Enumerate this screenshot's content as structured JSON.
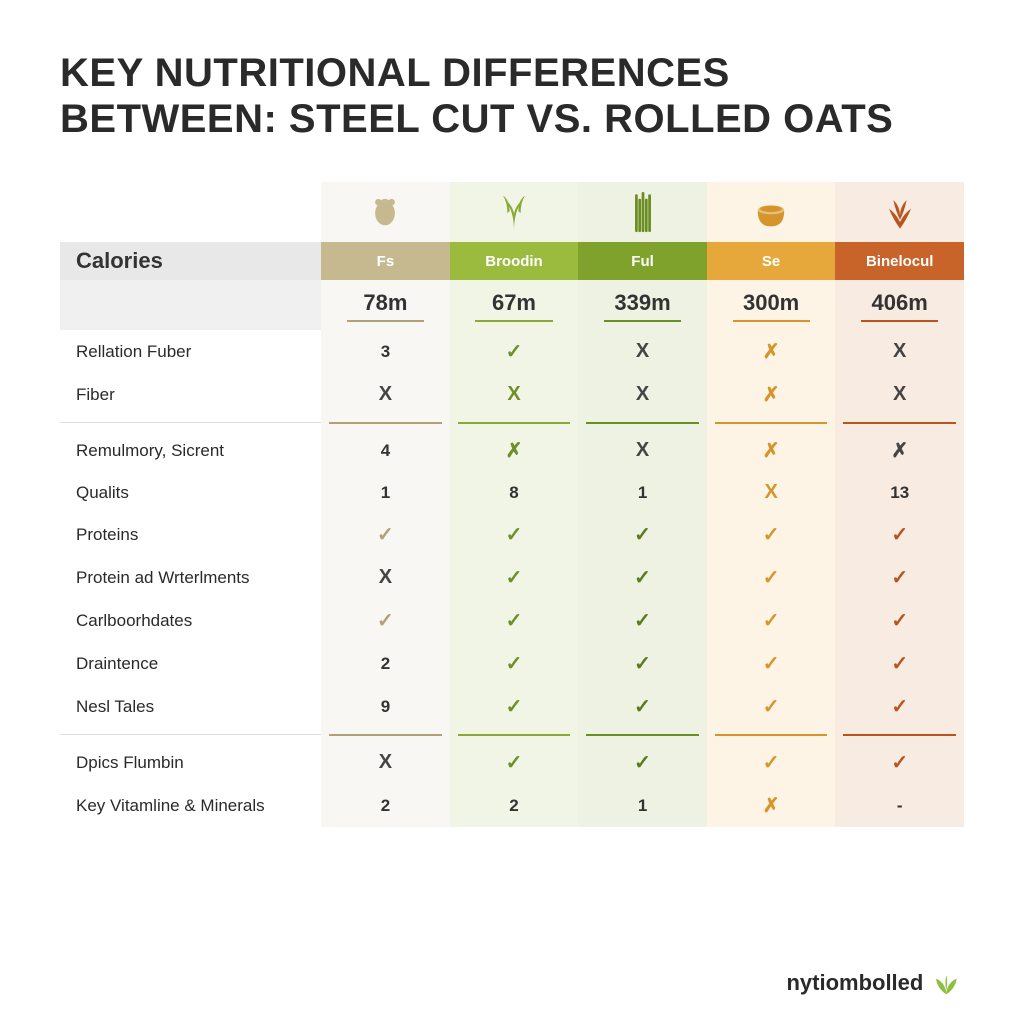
{
  "title_line1": "Key Nutritional Differences",
  "title_line2": "Between: Steel Cut vs. Rolled Oats",
  "calories_label": "Calories",
  "columns": [
    {
      "label": "Fs",
      "value": "78m",
      "header_bg": "#c7b98f",
      "accent": "#b0a275",
      "tint": "c1",
      "check_color": "#b0a275",
      "cross_color": "#444444"
    },
    {
      "label": "Broodin",
      "value": "67m",
      "header_bg": "#9bbb3f",
      "accent": "#8aa936",
      "tint": "c2",
      "check_color": "#6f8f2a",
      "cross_color": "#6f8f2a"
    },
    {
      "label": "Ful",
      "value": "339m",
      "header_bg": "#7fa22c",
      "accent": "#6b8e23",
      "tint": "c3",
      "check_color": "#5a7a1e",
      "cross_color": "#444444"
    },
    {
      "label": "Se",
      "value": "300m",
      "header_bg": "#e6a83b",
      "accent": "#d6952c",
      "tint": "c4",
      "check_color": "#d6952c",
      "cross_color": "#d6952c"
    },
    {
      "label": "Binelocul",
      "value": "406m",
      "header_bg": "#c8632a",
      "accent": "#b8551f",
      "tint": "c5",
      "check_color": "#b8551f",
      "cross_color": "#444444"
    }
  ],
  "rows": [
    {
      "label": "Rellation Fuber",
      "cells": [
        "3",
        "✓",
        "X",
        "✗",
        "X"
      ]
    },
    {
      "label": "Fiber",
      "cells": [
        "X",
        "X",
        "X",
        "✗",
        "X"
      ]
    },
    {
      "sep": true
    },
    {
      "label": "Remulmory, Sicrent",
      "cells": [
        "4",
        "✗",
        "X",
        "✗",
        "✗"
      ]
    },
    {
      "label": "Qualits",
      "cells": [
        "1",
        "8",
        "1",
        "X",
        "13"
      ]
    },
    {
      "label": "Proteins",
      "cells": [
        "✓",
        "✓",
        "✓",
        "✓",
        "✓"
      ]
    },
    {
      "label": "Protein ad Wrterlments",
      "cells": [
        "X",
        "✓",
        "✓",
        "✓",
        "✓"
      ]
    },
    {
      "label": "Carlboorhdates",
      "cells": [
        "✓",
        "✓",
        "✓",
        "✓",
        "✓"
      ]
    },
    {
      "label": "Draintence",
      "cells": [
        "2",
        "✓",
        "✓",
        "✓",
        "✓"
      ]
    },
    {
      "label": "Nesl Tales",
      "cells": [
        "9",
        "✓",
        "✓",
        "✓",
        "✓"
      ]
    },
    {
      "sep": true
    },
    {
      "label": "Dpics Flumbin",
      "cells": [
        "X",
        "✓",
        "✓",
        "✓",
        "✓"
      ]
    },
    {
      "label": "Key Vitamline & Minerals",
      "cells": [
        "2",
        "2",
        "1",
        "✗",
        "-"
      ]
    }
  ],
  "styling": {
    "body_bg": "#ffffff",
    "title_color": "#2a2a2a",
    "title_fontsize": 40,
    "row_label_fontsize": 17,
    "value_fontsize": 22,
    "check_glyph": "✓",
    "cross_glyph": "✕",
    "small_cross_glyph": "✗",
    "sep_color": "#dddddd"
  },
  "footer": {
    "text": "nytiombolled",
    "leaf_color": "#8fbf3f"
  }
}
